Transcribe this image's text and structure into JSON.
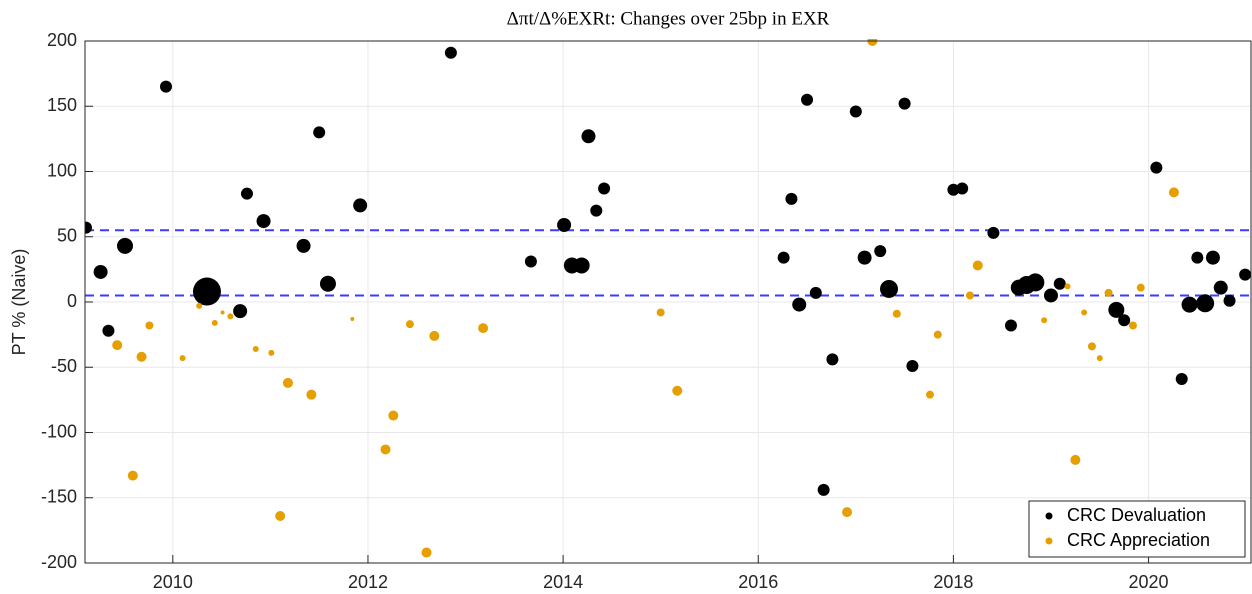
{
  "chart_data": {
    "type": "scatter",
    "title": "Δπt/Δ%EXRt: Changes over 25bp in EXR",
    "y_label": "PT % (Naive)",
    "xlim": [
      2009.1,
      2021.05
    ],
    "ylim": [
      -200,
      200
    ],
    "xticks": [
      2010,
      2012,
      2014,
      2016,
      2018,
      2020
    ],
    "yticks": [
      -200,
      -150,
      -100,
      -50,
      0,
      50,
      100,
      150,
      200
    ],
    "grid": true,
    "legend": "lower right",
    "reference_lines": [
      {
        "value": 55,
        "color": "#3b3bff"
      },
      {
        "value": 5,
        "color": "#3b3bff"
      }
    ],
    "series": [
      {
        "name": "CRC Devaluation",
        "color": "#000000",
        "x": [
          2009.11,
          2009.26,
          2009.34,
          2009.51,
          2009.93,
          2010.35,
          2010.69,
          2010.76,
          2010.93,
          2011.34,
          2011.5,
          2011.59,
          2011.92,
          2012.85,
          2013.67,
          2014.01,
          2014.09,
          2014.19,
          2014.26,
          2014.34,
          2014.42,
          2016.26,
          2016.34,
          2016.42,
          2016.5,
          2016.59,
          2016.67,
          2016.76,
          2017.0,
          2017.09,
          2017.25,
          2017.34,
          2017.5,
          2017.58,
          2018.0,
          2018.09,
          2018.41,
          2018.59,
          2018.67,
          2018.75,
          2018.84,
          2019.0,
          2019.09,
          2019.67,
          2019.75,
          2020.08,
          2020.34,
          2020.42,
          2020.5,
          2020.58,
          2020.66,
          2020.74,
          2020.83,
          2020.99
        ],
        "values": [
          57,
          23,
          -22,
          43,
          165,
          8,
          -7,
          83,
          62,
          43,
          130,
          14,
          74,
          191,
          31,
          59,
          28,
          28,
          127,
          70,
          87,
          34,
          79,
          -2,
          155,
          7,
          -144,
          -44,
          146,
          34,
          39,
          10,
          152,
          -49,
          86,
          87,
          53,
          -18,
          11,
          13,
          15,
          5,
          14,
          -6,
          -14,
          103,
          -59,
          -2,
          34,
          -1,
          34,
          11,
          1,
          21
        ],
        "sizes": [
          36,
          49,
          36,
          64,
          36,
          196,
          49,
          36,
          49,
          49,
          36,
          64,
          49,
          36,
          36,
          49,
          64,
          64,
          49,
          36,
          36,
          36,
          36,
          49,
          36,
          36,
          36,
          36,
          36,
          49,
          36,
          81,
          36,
          36,
          36,
          36,
          36,
          36,
          64,
          81,
          81,
          49,
          36,
          64,
          36,
          36,
          36,
          64,
          36,
          81,
          49,
          49,
          36,
          36
        ]
      },
      {
        "name": "CRC Appreciation",
        "color": "#e69f00",
        "x": [
          2009.43,
          2009.68,
          2009.76,
          2009.59,
          2010.1,
          2010.27,
          2010.43,
          2010.59,
          2010.51,
          2010.85,
          2011.01,
          2011.18,
          2011.1,
          2011.42,
          2011.84,
          2012.18,
          2012.26,
          2012.43,
          2012.6,
          2012.68,
          2013.18,
          2015.0,
          2015.17,
          2017.17,
          2016.91,
          2017.42,
          2017.76,
          2017.84,
          2018.17,
          2018.25,
          2018.93,
          2019.17,
          2019.25,
          2019.34,
          2019.42,
          2019.5,
          2019.59,
          2019.84,
          2019.92,
          2020.26
        ],
        "values": [
          -33,
          -42,
          -18,
          -133,
          -43,
          -3,
          -16,
          -11,
          -8,
          -36,
          -39,
          -62,
          -164,
          -71,
          -13,
          -113,
          -87,
          -17,
          -192,
          -26,
          -20,
          -8,
          -68,
          200,
          -161,
          -9,
          -71,
          -25,
          5,
          28,
          -14,
          12,
          -121,
          -8,
          -34,
          -43,
          7,
          -18,
          11,
          84
        ],
        "sizes": [
          25,
          25,
          16,
          25,
          9,
          9,
          9,
          9,
          4,
          9,
          9,
          25,
          25,
          25,
          4,
          25,
          25,
          16,
          25,
          25,
          25,
          16,
          25,
          25,
          25,
          16,
          16,
          16,
          16,
          25,
          9,
          9,
          25,
          9,
          16,
          9,
          16,
          16,
          16,
          25
        ]
      }
    ]
  }
}
